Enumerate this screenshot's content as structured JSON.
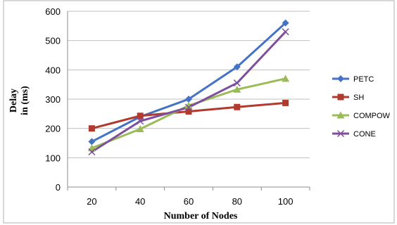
{
  "chart_data": {
    "type": "line",
    "xlabel": "Number of Nodes",
    "ylabel": "Delay in (ms)",
    "ylabel_lines": [
      "Delay",
      "in (ms)"
    ],
    "x": [
      20,
      40,
      60,
      80,
      100
    ],
    "x_tick_labels": [
      "20",
      "40",
      "60",
      "80",
      "100"
    ],
    "y_tick_labels": [
      "0",
      "100",
      "200",
      "300",
      "400",
      "500",
      "600"
    ],
    "ylim": [
      0,
      600
    ],
    "grid": "horizontal",
    "legend_position": "right",
    "series": [
      {
        "name": "PETC",
        "values": [
          155,
          240,
          300,
          410,
          560
        ],
        "color": "#4472C4",
        "marker": "diamond"
      },
      {
        "name": "SH",
        "values": [
          200,
          243,
          258,
          273,
          287
        ],
        "color": "#B03A2E",
        "marker": "square"
      },
      {
        "name": "COMPOW",
        "values": [
          133,
          198,
          278,
          333,
          370
        ],
        "color": "#9BBB59",
        "marker": "triangle"
      },
      {
        "name": "CONE",
        "values": [
          120,
          225,
          272,
          355,
          530
        ],
        "color": "#7E4F9C",
        "marker": "x"
      }
    ]
  }
}
